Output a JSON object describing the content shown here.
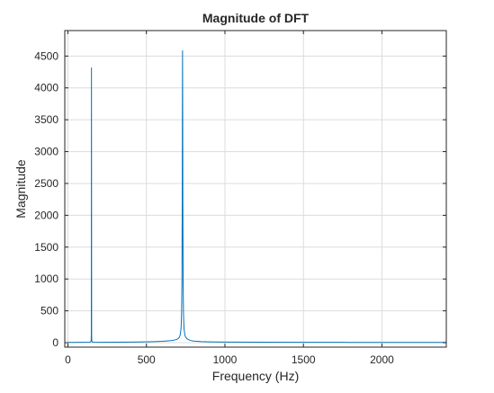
{
  "chart_data": {
    "type": "line",
    "title": "Magnitude of DFT",
    "xlabel": "Frequency (Hz)",
    "ylabel": "Magnitude",
    "xlim": [
      -20,
      2410
    ],
    "ylim": [
      -70,
      4900
    ],
    "xticks": [
      0,
      500,
      1000,
      1500,
      2000
    ],
    "yticks": [
      0,
      500,
      1000,
      1500,
      2000,
      2500,
      3000,
      3500,
      4000,
      4500
    ],
    "grid": true,
    "line_color": "#0072BD",
    "series": [
      {
        "x": [
          0,
          100,
          140,
          145,
          148,
          149,
          150,
          151,
          152,
          155,
          160,
          200,
          300,
          400,
          500,
          550,
          600,
          650,
          680,
          700,
          710,
          715,
          720,
          722,
          724,
          726,
          728,
          729,
          730,
          731,
          732,
          734,
          736,
          738,
          740,
          745,
          750,
          760,
          780,
          800,
          850,
          900,
          1000,
          1200,
          1500,
          1800,
          2100,
          2410
        ],
        "y": [
          5,
          6,
          8,
          12,
          25,
          120,
          4320,
          120,
          25,
          12,
          8,
          6,
          8,
          10,
          13,
          16,
          21,
          30,
          42,
          60,
          85,
          120,
          210,
          300,
          480,
          900,
          2200,
          3600,
          4590,
          3600,
          2200,
          900,
          480,
          300,
          210,
          120,
          85,
          58,
          35,
          26,
          17,
          13,
          10,
          7,
          6,
          5,
          4,
          4
        ]
      }
    ]
  }
}
